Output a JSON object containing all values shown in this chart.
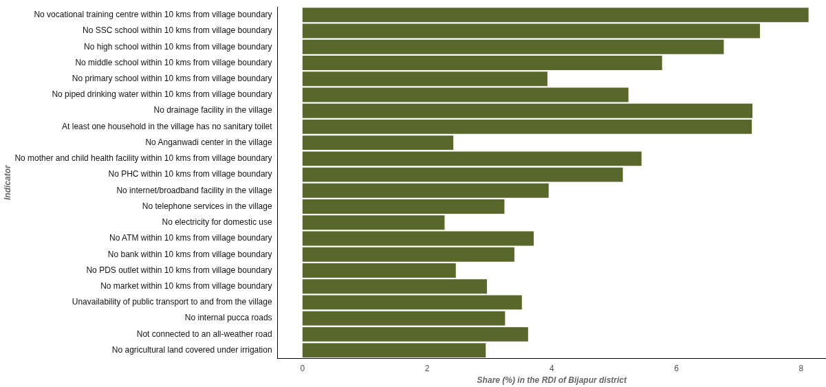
{
  "chart_data": {
    "type": "bar",
    "orientation": "horizontal",
    "xlabel": "Share (%) in the RDI of Bijapur district",
    "ylabel": "Indicator",
    "categories": [
      "No vocational training centre within 10 kms from village boundary",
      "No SSC school within 10 kms from village boundary",
      "No high school within 10 kms from village boundary",
      "No middle school within 10 kms from village boundary",
      "No primary school within 10 kms from village boundary",
      "No piped drinking water within 10 kms from village boundary",
      "No drainage facility in the village",
      "At least one household in the village has no sanitary toilet",
      "No Anganwadi center in the village",
      "No mother and child health facility within 10 kms from village boundary",
      "No PHC within 10 kms from village boundary",
      "No internet/broadband facility in the village",
      "No telephone services in the village",
      "No electricity for domestic use",
      "No ATM within 10 kms from village boundary",
      "No bank within 10 kms from village boundary",
      "No PDS outlet within 10 kms from village boundary",
      "No market within 10 kms from village boundary",
      "Unavailability of public transport to and from the village",
      "No internal pucca roads",
      "Not connected to an all-weather road",
      "No agricultural land covered under irrigation"
    ],
    "values": [
      8.12,
      7.34,
      6.76,
      5.77,
      3.93,
      5.23,
      7.22,
      7.21,
      2.42,
      5.44,
      5.14,
      3.95,
      3.24,
      2.28,
      3.71,
      3.4,
      2.46,
      2.96,
      3.52,
      3.25,
      3.62,
      2.94
    ],
    "color": "#58682a",
    "xlim": [
      -0.4,
      8.4
    ],
    "xticks": [
      0,
      2,
      4,
      6,
      8
    ],
    "grid": false,
    "legend": false
  }
}
